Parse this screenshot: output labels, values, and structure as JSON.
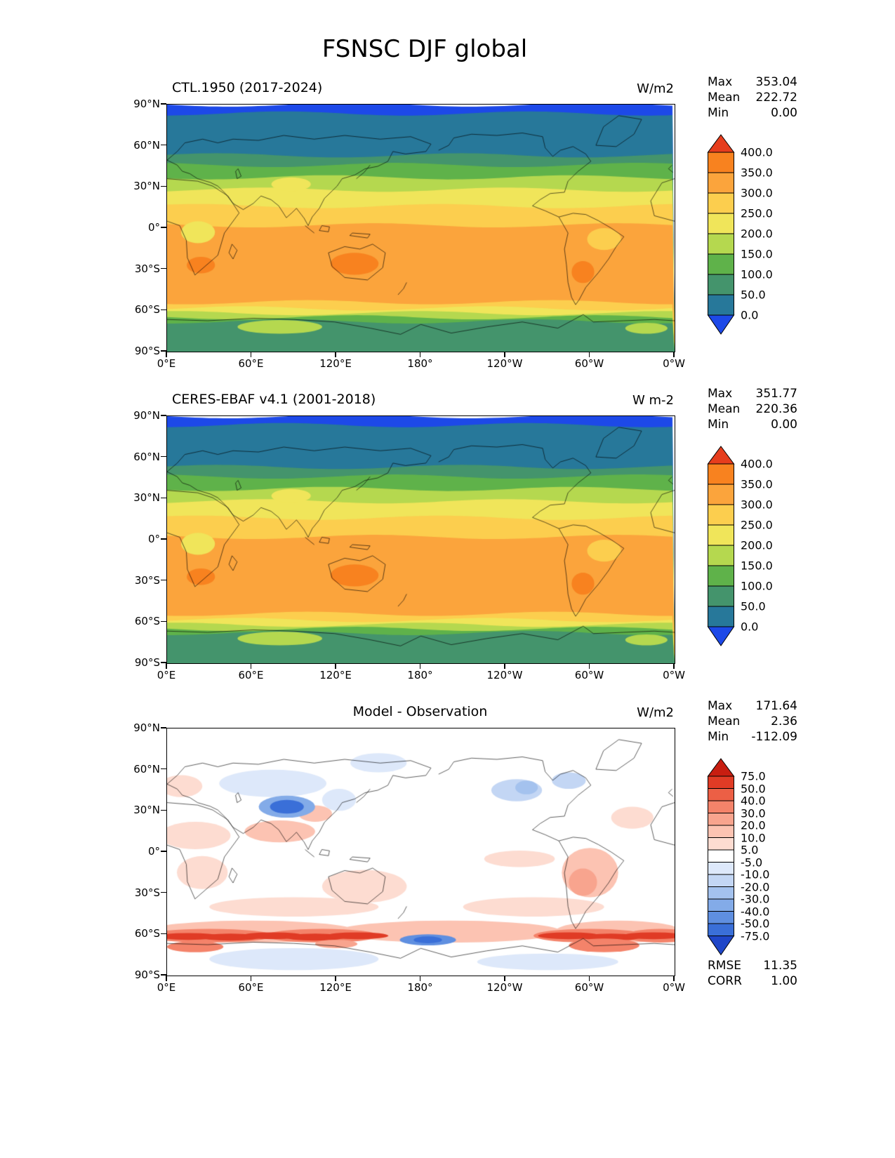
{
  "title": "FSNSC DJF global",
  "panels": [
    {
      "title": "CTL.1950 (2017-2024)",
      "units": "W/m2",
      "stats": [
        {
          "label": "Max",
          "value": "353.04"
        },
        {
          "label": "Mean",
          "value": "222.72"
        },
        {
          "label": "Min",
          "value": "0.00"
        }
      ],
      "yticks": [
        "90°N",
        "60°N",
        "30°N",
        "0°",
        "30°S",
        "60°S",
        "90°S"
      ],
      "xticks": [
        "0°E",
        "60°E",
        "120°E",
        "180°",
        "120°W",
        "60°W",
        "0°W"
      ],
      "colorbar": {
        "labels_top_to_bottom": [
          "400.0",
          "350.0",
          "300.0",
          "250.0",
          "200.0",
          "150.0",
          "100.0",
          "50.0",
          "0.0"
        ],
        "colors_under_to_over": [
          "#1d49e8",
          "#27789a",
          "#44946c",
          "#5fb24a",
          "#b5d84f",
          "#f0e55a",
          "#fcce4e",
          "#fba43c",
          "#f8821f",
          "#e63d1d"
        ],
        "seg_h": 29
      }
    },
    {
      "title": "CERES-EBAF v4.1 (2001-2018)",
      "units": "W m-2",
      "stats": [
        {
          "label": "Max",
          "value": "351.77"
        },
        {
          "label": "Mean",
          "value": "220.36"
        },
        {
          "label": "Min",
          "value": "0.00"
        }
      ],
      "yticks": [
        "90°N",
        "60°N",
        "30°N",
        "0°",
        "30°S",
        "60°S",
        "90°S"
      ],
      "xticks": [
        "0°E",
        "60°E",
        "120°E",
        "180°",
        "120°W",
        "60°W",
        "0°W"
      ],
      "colorbar": {
        "labels_top_to_bottom": [
          "400.0",
          "350.0",
          "300.0",
          "250.0",
          "200.0",
          "150.0",
          "100.0",
          "50.0",
          "0.0"
        ],
        "colors_under_to_over": [
          "#1d49e8",
          "#27789a",
          "#44946c",
          "#5fb24a",
          "#b5d84f",
          "#f0e55a",
          "#fcce4e",
          "#fba43c",
          "#f8821f",
          "#e63d1d"
        ],
        "seg_h": 29
      }
    },
    {
      "title": "Model - Observation",
      "units": "W/m2",
      "stats": [
        {
          "label": "Max",
          "value": "171.64"
        },
        {
          "label": "Mean",
          "value": "2.36"
        },
        {
          "label": "Min",
          "value": "-112.09"
        }
      ],
      "extra_stats": [
        {
          "label": "RMSE",
          "value": "11.35"
        },
        {
          "label": "CORR",
          "value": "1.00"
        }
      ],
      "yticks": [
        "90°N",
        "60°N",
        "30°N",
        "0°",
        "30°S",
        "60°S",
        "90°S"
      ],
      "xticks": [
        "0°E",
        "60°E",
        "120°E",
        "180°",
        "120°W",
        "60°W",
        "0°W"
      ],
      "colorbar": {
        "labels_top_to_bottom": [
          "75.0",
          "50.0",
          "40.0",
          "30.0",
          "20.0",
          "10.0",
          "5.0",
          "-5.0",
          "-10.0",
          "-20.0",
          "-30.0",
          "-40.0",
          "-50.0",
          "-75.0"
        ],
        "colors_under_to_over": [
          "#1f46c8",
          "#3a6fd8",
          "#5f8fe0",
          "#83abe8",
          "#a4c2ee",
          "#c3d6f4",
          "#dde8fa",
          "#ffffff",
          "#fddcd1",
          "#fcc3b2",
          "#f8a48e",
          "#f4836a",
          "#ec5f45",
          "#e03b25",
          "#c81e11"
        ],
        "seg_h": 17.5
      }
    }
  ],
  "chart_data": [
    {
      "type": "heatmap",
      "title": "CTL.1950 (2017-2024)",
      "units": "W/m2",
      "stats": {
        "max": 353.04,
        "mean": 222.72,
        "min": 0.0
      },
      "lon_range": [
        0,
        360
      ],
      "lat_range": [
        -90,
        90
      ],
      "levels": [
        0,
        50,
        100,
        150,
        200,
        250,
        300,
        350,
        400
      ],
      "zonal_bands": [
        [
          90,
          -5
        ],
        [
          83.5,
          25
        ],
        [
          53,
          75
        ],
        [
          46,
          125
        ],
        [
          37,
          175
        ],
        [
          28,
          225
        ],
        [
          16,
          275
        ],
        [
          2,
          325
        ],
        [
          -54,
          275
        ],
        [
          -58.5,
          225
        ],
        [
          -62,
          175
        ],
        [
          -65,
          125
        ],
        [
          -68,
          75
        ]
      ],
      "patches": [
        [
          88,
          32,
          14,
          5,
          225
        ],
        [
          22,
          -3,
          12,
          8,
          225
        ],
        [
          24,
          -27,
          10,
          6,
          360
        ],
        [
          133,
          -26,
          17,
          8,
          360
        ],
        [
          295,
          -32,
          8,
          8,
          360
        ],
        [
          310,
          -8,
          12,
          8,
          275
        ],
        [
          80,
          -72,
          30,
          5,
          175
        ],
        [
          340,
          -73,
          15,
          4,
          175
        ]
      ]
    },
    {
      "type": "heatmap",
      "title": "CERES-EBAF v4.1 (2001-2018)",
      "units": "W m-2",
      "stats": {
        "max": 351.77,
        "mean": 220.36,
        "min": 0.0
      },
      "lon_range": [
        0,
        360
      ],
      "lat_range": [
        -90,
        90
      ],
      "levels": [
        0,
        50,
        100,
        150,
        200,
        250,
        300,
        350,
        400
      ],
      "zonal_bands": [
        [
          90,
          -5
        ],
        [
          83.5,
          25
        ],
        [
          53,
          75
        ],
        [
          46,
          125
        ],
        [
          37,
          175
        ],
        [
          28,
          225
        ],
        [
          16,
          275
        ],
        [
          2,
          325
        ],
        [
          -54,
          275
        ],
        [
          -58.5,
          225
        ],
        [
          -62,
          175
        ],
        [
          -65,
          125
        ],
        [
          -68,
          75
        ]
      ],
      "patches": [
        [
          88,
          32,
          14,
          5,
          225
        ],
        [
          22,
          -3,
          12,
          8,
          225
        ],
        [
          24,
          -27,
          10,
          6,
          360
        ],
        [
          133,
          -26,
          17,
          8,
          360
        ],
        [
          295,
          -32,
          8,
          8,
          360
        ],
        [
          310,
          -8,
          12,
          8,
          275
        ],
        [
          80,
          -72,
          30,
          5,
          175
        ],
        [
          340,
          -73,
          15,
          4,
          175
        ]
      ]
    },
    {
      "type": "heatmap",
      "title": "Model - Observation",
      "units": "W/m2",
      "stats": {
        "max": 171.64,
        "mean": 2.36,
        "min": -112.09,
        "rmse": 11.35,
        "corr": 1.0
      },
      "lon_range": [
        0,
        360
      ],
      "lat_range": [
        -90,
        90
      ],
      "levels": [
        -75,
        -50,
        -40,
        -30,
        -20,
        -10,
        -5,
        5,
        10,
        20,
        30,
        40,
        50,
        75
      ],
      "background_value": 0,
      "blobs": [
        [
          60,
          -58,
          75,
          8,
          12
        ],
        [
          200,
          -58,
          80,
          8,
          12
        ],
        [
          320,
          -58,
          45,
          8,
          12
        ],
        [
          90,
          -40,
          60,
          7,
          6
        ],
        [
          260,
          -40,
          50,
          7,
          6
        ],
        [
          140,
          -25,
          30,
          12,
          7
        ],
        [
          250,
          -5,
          25,
          6,
          7
        ],
        [
          330,
          25,
          15,
          8,
          6
        ],
        [
          10,
          48,
          15,
          8,
          7
        ],
        [
          20,
          12,
          25,
          10,
          6
        ],
        [
          25,
          -15,
          18,
          12,
          8
        ],
        [
          75,
          50,
          38,
          10,
          -8
        ],
        [
          122,
          38,
          12,
          8,
          -8
        ],
        [
          150,
          65,
          20,
          7,
          -7
        ],
        [
          80,
          15,
          25,
          8,
          12
        ],
        [
          105,
          28,
          12,
          6,
          15
        ],
        [
          300,
          -15,
          20,
          18,
          12
        ],
        [
          295,
          -22,
          10,
          10,
          25
        ],
        [
          248,
          45,
          18,
          8,
          -15
        ],
        [
          255,
          47,
          8,
          5,
          -30
        ],
        [
          285,
          52,
          12,
          6,
          -12
        ],
        [
          85,
          33,
          20,
          8,
          -35
        ],
        [
          85,
          33,
          12,
          5,
          -60
        ],
        [
          30,
          -61,
          45,
          5,
          30
        ],
        [
          110,
          -61,
          40,
          5,
          30
        ],
        [
          300,
          -61,
          40,
          5,
          30
        ],
        [
          350,
          -61,
          25,
          5,
          30
        ],
        [
          15,
          -61.5,
          22,
          2.5,
          60
        ],
        [
          45,
          -62,
          22,
          2.5,
          60
        ],
        [
          75,
          -61,
          22,
          2.5,
          60
        ],
        [
          105,
          -62,
          22,
          2.5,
          60
        ],
        [
          135,
          -61,
          22,
          2.5,
          60
        ],
        [
          285,
          -61,
          22,
          2.5,
          60
        ],
        [
          315,
          -62,
          22,
          2.5,
          60
        ],
        [
          345,
          -61,
          22,
          2.5,
          60
        ],
        [
          185,
          -64,
          20,
          4,
          -45
        ],
        [
          185,
          -64,
          10,
          2.5,
          -70
        ],
        [
          310,
          -68,
          25,
          5,
          35
        ],
        [
          20,
          -69,
          20,
          4,
          30
        ],
        [
          120,
          -67,
          15,
          3,
          25
        ],
        [
          90,
          -78,
          60,
          8,
          -8
        ],
        [
          270,
          -80,
          50,
          6,
          -8
        ]
      ]
    }
  ]
}
